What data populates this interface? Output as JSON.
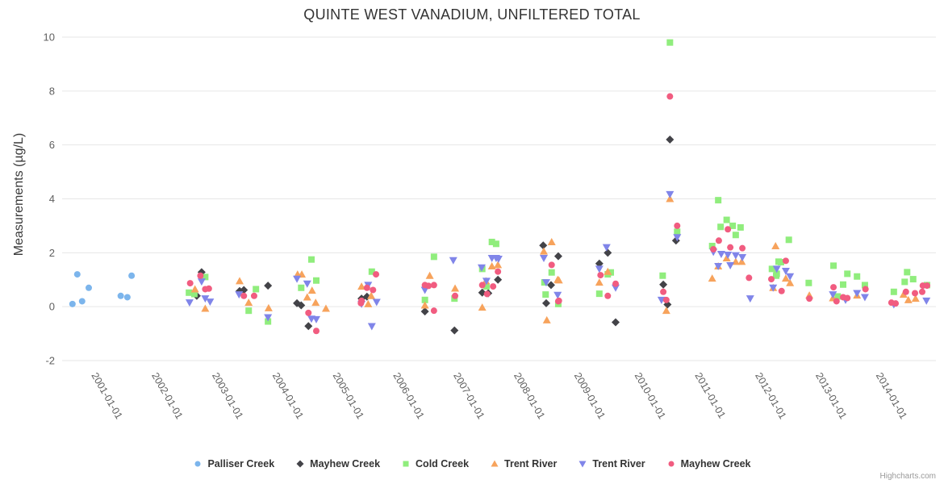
{
  "title": "QUINTE WEST VANADIUM, UNFILTERED TOTAL",
  "credit": "Highcharts.com",
  "chart_data": {
    "type": "scatter",
    "title": "QUINTE WEST VANADIUM, UNFILTERED TOTAL",
    "xlabel": "",
    "ylabel": "Measurements (µg/L)",
    "ylim": [
      -2,
      10
    ],
    "y_ticks": [
      -2,
      0,
      2,
      4,
      6,
      8,
      10
    ],
    "x_ticks": [
      "2001-01-01",
      "2002-01-01",
      "2003-01-01",
      "2004-01-01",
      "2005-01-01",
      "2006-01-01",
      "2007-01-01",
      "2008-01-01",
      "2009-01-01",
      "2010-01-01",
      "2011-01-01",
      "2012-01-01",
      "2013-01-01",
      "2014-01-01"
    ],
    "x_tick_years": [
      2001,
      2002,
      2003,
      2004,
      2005,
      2006,
      2007,
      2008,
      2009,
      2010,
      2011,
      2012,
      2013,
      2014
    ],
    "grid": "horizontal",
    "legend_position": "bottom",
    "series": [
      {
        "name": "Palliser Creek",
        "marker": "circle",
        "color": "#7cb5ec",
        "points": [
          [
            2000.73,
            0.1
          ],
          [
            2000.81,
            1.2
          ],
          [
            2000.89,
            0.2
          ],
          [
            2001.0,
            0.7
          ],
          [
            2001.53,
            0.4
          ],
          [
            2001.64,
            0.35
          ],
          [
            2001.71,
            1.15
          ]
        ]
      },
      {
        "name": "Mayhew Creek",
        "marker": "diamond",
        "color": "#434348",
        "points": [
          [
            2002.87,
            1.28
          ],
          [
            2002.79,
            0.4
          ],
          [
            2003.5,
            0.58
          ],
          [
            2003.57,
            0.62
          ],
          [
            2003.97,
            0.78
          ],
          [
            2004.45,
            0.13
          ],
          [
            2004.52,
            0.05
          ],
          [
            2004.64,
            -0.72
          ],
          [
            2005.61,
            0.37
          ],
          [
            2005.52,
            0.3
          ],
          [
            2006.57,
            -0.18
          ],
          [
            2007.06,
            -0.88
          ],
          [
            2007.52,
            0.52
          ],
          [
            2007.62,
            0.5
          ],
          [
            2007.78,
            1.0
          ],
          [
            2008.53,
            2.27
          ],
          [
            2008.78,
            1.87
          ],
          [
            2008.66,
            0.8
          ],
          [
            2008.58,
            0.13
          ],
          [
            2009.6,
            2.0
          ],
          [
            2009.46,
            1.6
          ],
          [
            2009.73,
            -0.58
          ],
          [
            2010.52,
            0.82
          ],
          [
            2010.59,
            0.08
          ],
          [
            2010.63,
            6.2
          ],
          [
            2010.73,
            2.45
          ]
        ]
      },
      {
        "name": "Cold Creek",
        "marker": "square",
        "color": "#90ed7d",
        "points": [
          [
            2002.66,
            0.52
          ],
          [
            2002.75,
            0.47
          ],
          [
            2002.93,
            1.1
          ],
          [
            2003.77,
            0.65
          ],
          [
            2003.65,
            -0.15
          ],
          [
            2003.97,
            -0.55
          ],
          [
            2004.69,
            1.75
          ],
          [
            2004.77,
            0.97
          ],
          [
            2004.52,
            0.7
          ],
          [
            2005.69,
            1.3
          ],
          [
            2006.72,
            1.85
          ],
          [
            2006.57,
            0.25
          ],
          [
            2007.06,
            0.3
          ],
          [
            2007.68,
            2.4
          ],
          [
            2007.75,
            2.33
          ],
          [
            2007.52,
            1.4
          ],
          [
            2007.59,
            0.75
          ],
          [
            2008.67,
            1.27
          ],
          [
            2008.55,
            0.9
          ],
          [
            2008.57,
            0.45
          ],
          [
            2008.78,
            0.1
          ],
          [
            2009.65,
            1.27
          ],
          [
            2009.6,
            1.2
          ],
          [
            2009.46,
            0.48
          ],
          [
            2010.51,
            1.15
          ],
          [
            2010.63,
            9.8
          ],
          [
            2010.75,
            2.78
          ],
          [
            2011.43,
            3.95
          ],
          [
            2011.57,
            3.22
          ],
          [
            2011.47,
            2.96
          ],
          [
            2011.67,
            3.0
          ],
          [
            2011.8,
            2.94
          ],
          [
            2011.72,
            2.66
          ],
          [
            2011.33,
            2.25
          ],
          [
            2012.43,
            1.67
          ],
          [
            2012.32,
            1.4
          ],
          [
            2012.39,
            1.15
          ],
          [
            2012.6,
            2.48
          ],
          [
            2012.47,
            1.65
          ],
          [
            2012.4,
            1.22
          ],
          [
            2012.93,
            0.88
          ],
          [
            2013.34,
            1.52
          ],
          [
            2013.57,
            1.22
          ],
          [
            2013.5,
            0.82
          ],
          [
            2013.41,
            0.38
          ],
          [
            2013.73,
            1.12
          ],
          [
            2013.86,
            0.8
          ],
          [
            2014.34,
            0.55
          ],
          [
            2014.52,
            0.92
          ],
          [
            2014.56,
            1.28
          ],
          [
            2014.66,
            1.02
          ],
          [
            2014.89,
            0.8
          ]
        ]
      },
      {
        "name": "Trent River",
        "marker": "triangle",
        "color": "#f7a35c",
        "points": [
          [
            2002.76,
            0.65
          ],
          [
            2002.93,
            -0.07
          ],
          [
            2003.5,
            0.95
          ],
          [
            2003.65,
            0.15
          ],
          [
            2003.98,
            -0.05
          ],
          [
            2004.46,
            1.2
          ],
          [
            2004.53,
            1.2
          ],
          [
            2004.7,
            0.6
          ],
          [
            2004.62,
            0.35
          ],
          [
            2004.76,
            0.15
          ],
          [
            2004.93,
            -0.07
          ],
          [
            2005.52,
            0.75
          ],
          [
            2005.68,
            0.4
          ],
          [
            2005.63,
            0.1
          ],
          [
            2006.65,
            1.15
          ],
          [
            2006.57,
            0.05
          ],
          [
            2007.07,
            0.68
          ],
          [
            2007.68,
            1.5
          ],
          [
            2007.78,
            1.55
          ],
          [
            2007.58,
            0.95
          ],
          [
            2007.52,
            -0.03
          ],
          [
            2008.67,
            2.4
          ],
          [
            2008.54,
            2.05
          ],
          [
            2008.77,
            1.0
          ],
          [
            2008.59,
            -0.5
          ],
          [
            2008.79,
            0.98
          ],
          [
            2009.6,
            1.3
          ],
          [
            2009.46,
            0.9
          ],
          [
            2010.57,
            -0.15
          ],
          [
            2010.63,
            4.0
          ],
          [
            2011.57,
            1.8
          ],
          [
            2011.72,
            1.67
          ],
          [
            2011.82,
            1.67
          ],
          [
            2011.43,
            1.5
          ],
          [
            2011.33,
            1.05
          ],
          [
            2012.38,
            2.25
          ],
          [
            2012.55,
            1.05
          ],
          [
            2012.62,
            0.88
          ],
          [
            2012.34,
            0.7
          ],
          [
            2012.94,
            0.42
          ],
          [
            2013.33,
            0.32
          ],
          [
            2013.73,
            0.42
          ],
          [
            2014.5,
            0.45
          ],
          [
            2014.58,
            0.25
          ],
          [
            2014.7,
            0.3
          ]
        ]
      },
      {
        "name": "Trent River",
        "marker": "triangle-down",
        "color": "#8085e9",
        "points": [
          [
            2002.87,
            0.93
          ],
          [
            2002.93,
            0.3
          ],
          [
            2003.01,
            0.18
          ],
          [
            2002.67,
            0.15
          ],
          [
            2003.49,
            0.45
          ],
          [
            2003.97,
            -0.4
          ],
          [
            2004.45,
            1.03
          ],
          [
            2004.62,
            0.85
          ],
          [
            2004.69,
            -0.45
          ],
          [
            2004.77,
            -0.47
          ],
          [
            2005.63,
            0.8
          ],
          [
            2005.52,
            0.1
          ],
          [
            2005.77,
            0.17
          ],
          [
            2005.69,
            -0.73
          ],
          [
            2006.57,
            0.62
          ],
          [
            2007.04,
            1.72
          ],
          [
            2007.68,
            1.8
          ],
          [
            2007.75,
            1.8
          ],
          [
            2007.79,
            1.77
          ],
          [
            2007.51,
            1.45
          ],
          [
            2007.59,
            0.95
          ],
          [
            2008.54,
            1.8
          ],
          [
            2008.58,
            0.9
          ],
          [
            2008.77,
            0.43
          ],
          [
            2009.58,
            2.2
          ],
          [
            2009.46,
            1.4
          ],
          [
            2009.73,
            0.7
          ],
          [
            2010.49,
            0.25
          ],
          [
            2010.63,
            4.17
          ],
          [
            2010.75,
            2.57
          ],
          [
            2011.35,
            2.03
          ],
          [
            2011.48,
            1.95
          ],
          [
            2011.59,
            1.92
          ],
          [
            2011.72,
            1.9
          ],
          [
            2011.83,
            1.83
          ],
          [
            2011.63,
            1.53
          ],
          [
            2011.43,
            1.5
          ],
          [
            2012.4,
            1.4
          ],
          [
            2012.55,
            1.32
          ],
          [
            2012.62,
            1.12
          ],
          [
            2012.34,
            0.7
          ],
          [
            2011.96,
            0.3
          ],
          [
            2013.33,
            0.45
          ],
          [
            2013.54,
            0.25
          ],
          [
            2013.73,
            0.5
          ],
          [
            2013.86,
            0.35
          ],
          [
            2014.34,
            0.08
          ],
          [
            2014.88,
            0.22
          ]
        ]
      },
      {
        "name": "Mayhew Creek",
        "marker": "circle",
        "color": "#f15c80",
        "points": [
          [
            2002.68,
            0.87
          ],
          [
            2002.85,
            1.15
          ],
          [
            2002.93,
            0.65
          ],
          [
            2002.99,
            0.67
          ],
          [
            2003.57,
            0.4
          ],
          [
            2003.74,
            0.4
          ],
          [
            2004.64,
            -0.23
          ],
          [
            2004.77,
            -0.9
          ],
          [
            2005.76,
            1.2
          ],
          [
            2005.61,
            0.7
          ],
          [
            2005.71,
            0.62
          ],
          [
            2005.52,
            0.22
          ],
          [
            2005.51,
            0.13
          ],
          [
            2006.57,
            0.8
          ],
          [
            2006.63,
            0.77
          ],
          [
            2006.72,
            0.8
          ],
          [
            2006.72,
            -0.15
          ],
          [
            2007.07,
            0.4
          ],
          [
            2007.52,
            0.8
          ],
          [
            2007.7,
            0.75
          ],
          [
            2007.78,
            1.3
          ],
          [
            2007.6,
            0.47
          ],
          [
            2008.67,
            1.55
          ],
          [
            2008.78,
            0.2
          ],
          [
            2008.79,
            0.22
          ],
          [
            2009.48,
            1.17
          ],
          [
            2009.73,
            0.85
          ],
          [
            2009.6,
            0.4
          ],
          [
            2010.52,
            0.55
          ],
          [
            2010.57,
            0.25
          ],
          [
            2010.63,
            7.8
          ],
          [
            2010.75,
            3.0
          ],
          [
            2011.44,
            2.45
          ],
          [
            2011.35,
            2.13
          ],
          [
            2011.63,
            2.2
          ],
          [
            2011.83,
            2.17
          ],
          [
            2011.59,
            2.87
          ],
          [
            2011.94,
            1.07
          ],
          [
            2012.31,
            1.02
          ],
          [
            2012.55,
            1.7
          ],
          [
            2012.48,
            0.58
          ],
          [
            2012.94,
            0.3
          ],
          [
            2013.34,
            0.72
          ],
          [
            2013.39,
            0.2
          ],
          [
            2013.5,
            0.35
          ],
          [
            2013.57,
            0.32
          ],
          [
            2013.87,
            0.65
          ],
          [
            2014.3,
            0.15
          ],
          [
            2014.37,
            0.12
          ],
          [
            2014.54,
            0.55
          ],
          [
            2014.69,
            0.5
          ],
          [
            2014.81,
            0.55
          ],
          [
            2014.82,
            0.78
          ],
          [
            2014.89,
            0.78
          ]
        ]
      }
    ]
  }
}
